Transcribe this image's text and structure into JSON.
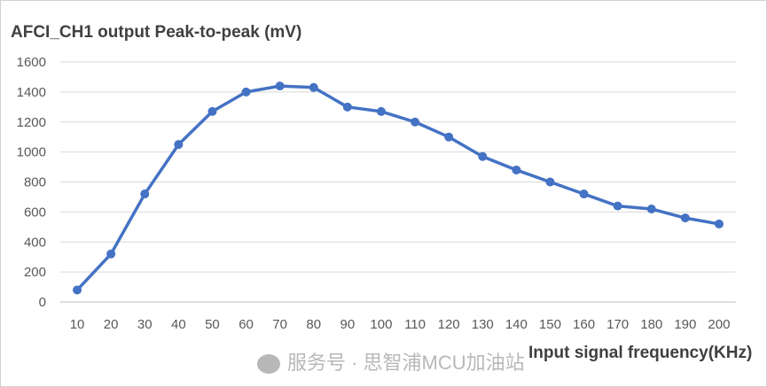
{
  "chart_data": {
    "type": "line",
    "title": "AFCI_CH1 output Peak-to-peak (mV)",
    "xlabel": "Input signal frequency(KHz)",
    "ylabel": "",
    "categories": [
      "10",
      "20",
      "30",
      "40",
      "50",
      "60",
      "70",
      "80",
      "90",
      "100",
      "110",
      "120",
      "130",
      "140",
      "150",
      "160",
      "170",
      "180",
      "190",
      "200"
    ],
    "series": [
      {
        "values": [
          80,
          320,
          720,
          1050,
          1270,
          1400,
          1440,
          1430,
          1300,
          1270,
          1200,
          1100,
          970,
          880,
          800,
          720,
          640,
          620,
          560,
          520
        ],
        "color": "#4472C4"
      }
    ],
    "ylim": [
      0,
      1600
    ],
    "yticks": [
      "0",
      "200",
      "400",
      "600",
      "800",
      "1000",
      "1200",
      "1400",
      "1600"
    ],
    "grid": true,
    "legend": "none"
  },
  "watermark": "服务号 · 思智浦MCU加油站"
}
